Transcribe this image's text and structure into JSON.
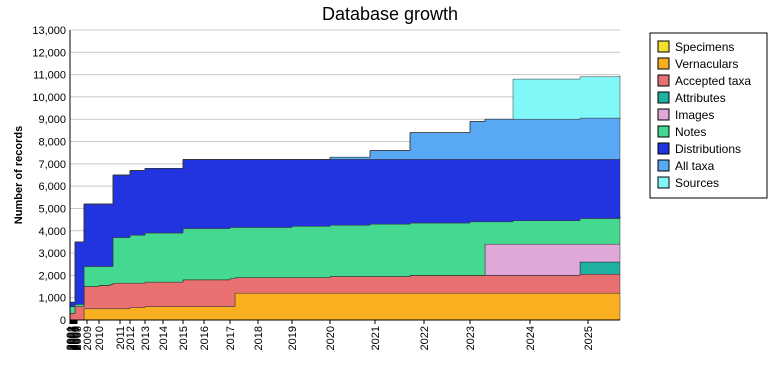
{
  "chart_data": {
    "type": "area",
    "stacked": true,
    "step": "post",
    "title": "Database growth",
    "ylabel": "Number of records",
    "x": [
      0,
      5,
      14,
      29,
      40,
      43,
      60,
      75,
      113,
      160,
      165,
      222,
      260,
      300,
      340,
      400,
      415,
      443,
      510,
      550
    ],
    "xlim": [
      0,
      550
    ],
    "xticks": [
      {
        "value": 0,
        "label": "2001"
      },
      {
        "value": 1,
        "label": "2002"
      },
      {
        "value": 2,
        "label": "2003"
      },
      {
        "value": 3,
        "label": "2004"
      },
      {
        "value": 4,
        "label": "2005"
      },
      {
        "value": 5,
        "label": "2006"
      },
      {
        "value": 6,
        "label": "2007"
      },
      {
        "value": 7,
        "label": "2008"
      },
      {
        "value": 17,
        "label": "2009"
      },
      {
        "value": 29,
        "label": "2010"
      },
      {
        "value": 50,
        "label": "2011"
      },
      {
        "value": 60,
        "label": "2012"
      },
      {
        "value": 75,
        "label": "2013"
      },
      {
        "value": 93,
        "label": "2014"
      },
      {
        "value": 113,
        "label": "2015"
      },
      {
        "value": 134,
        "label": "2016"
      },
      {
        "value": 160,
        "label": "2017"
      },
      {
        "value": 188,
        "label": "2018"
      },
      {
        "value": 222,
        "label": "2019"
      },
      {
        "value": 260,
        "label": "2020"
      },
      {
        "value": 305,
        "label": "2021"
      },
      {
        "value": 354,
        "label": "2022"
      },
      {
        "value": 400,
        "label": "2023"
      },
      {
        "value": 460,
        "label": "2024"
      },
      {
        "value": 518,
        "label": "2025"
      }
    ],
    "ylim": [
      0,
      13000
    ],
    "yticks": [
      0,
      {
        "value": 1000,
        "label": "1,000"
      },
      {
        "value": 2000,
        "label": "2,000"
      },
      {
        "value": 3000,
        "label": "3,000"
      },
      {
        "value": 4000,
        "label": "4,000"
      },
      {
        "value": 5000,
        "label": "5,000"
      },
      {
        "value": 6000,
        "label": "6,000"
      },
      {
        "value": 7000,
        "label": "7,000"
      },
      {
        "value": 8000,
        "label": "8,000"
      },
      {
        "value": 9000,
        "label": "9,000"
      },
      {
        "value": 10000,
        "label": "10,000"
      },
      {
        "value": 11000,
        "label": "11,000"
      },
      {
        "value": 12000,
        "label": "12,000"
      },
      {
        "value": 13000,
        "label": "13,000"
      }
    ],
    "grid": true,
    "legend": "right",
    "series": [
      {
        "name": "Specimens",
        "color": "#f2e030",
        "values": [
          0,
          0,
          0,
          0,
          0,
          0,
          0,
          0,
          0,
          0,
          0,
          0,
          0,
          0,
          0,
          0,
          0,
          0,
          0,
          0
        ]
      },
      {
        "name": "Vernaculars",
        "color": "#f8b020",
        "values": [
          0,
          0,
          500,
          500,
          500,
          500,
          550,
          600,
          600,
          600,
          1200,
          1200,
          1200,
          1200,
          1200,
          1200,
          1200,
          1200,
          1200,
          1200
        ]
      },
      {
        "name": "Accepted taxa",
        "color": "#e87070",
        "values": [
          300,
          600,
          1000,
          1050,
          1100,
          1150,
          1100,
          1100,
          1200,
          1250,
          700,
          700,
          750,
          750,
          800,
          800,
          800,
          800,
          850,
          850
        ]
      },
      {
        "name": "Attributes",
        "color": "#20b0a0",
        "values": [
          0,
          0,
          0,
          0,
          0,
          0,
          0,
          0,
          0,
          0,
          0,
          0,
          0,
          0,
          0,
          0,
          0,
          0,
          550,
          550
        ]
      },
      {
        "name": "Images",
        "color": "#e0a8d8",
        "values": [
          0,
          0,
          0,
          0,
          0,
          0,
          0,
          0,
          0,
          0,
          0,
          0,
          0,
          0,
          0,
          0,
          1400,
          1400,
          800,
          800
        ]
      },
      {
        "name": "Notes",
        "color": "#44d890",
        "values": [
          300,
          100,
          900,
          850,
          800,
          2050,
          2150,
          2200,
          2300,
          2300,
          2250,
          2300,
          2300,
          2350,
          2350,
          2400,
          1000,
          1050,
          1150,
          1300
        ]
      },
      {
        "name": "Distributions",
        "color": "#2234e0",
        "values": [
          200,
          2800,
          2800,
          2800,
          2800,
          2800,
          2900,
          2900,
          3100,
          3050,
          3050,
          3000,
          2950,
          2900,
          2850,
          2800,
          2800,
          2750,
          2650,
          2500
        ]
      },
      {
        "name": "All taxa",
        "color": "#58a8f4",
        "values": [
          0,
          0,
          0,
          0,
          0,
          0,
          0,
          0,
          0,
          0,
          0,
          0,
          100,
          400,
          1200,
          1700,
          1800,
          1800,
          1850,
          1900
        ]
      },
      {
        "name": "Sources",
        "color": "#80f8f8",
        "values": [
          0,
          0,
          0,
          0,
          0,
          0,
          0,
          0,
          0,
          0,
          0,
          0,
          0,
          0,
          0,
          0,
          0,
          1800,
          1850,
          1850
        ]
      }
    ]
  }
}
